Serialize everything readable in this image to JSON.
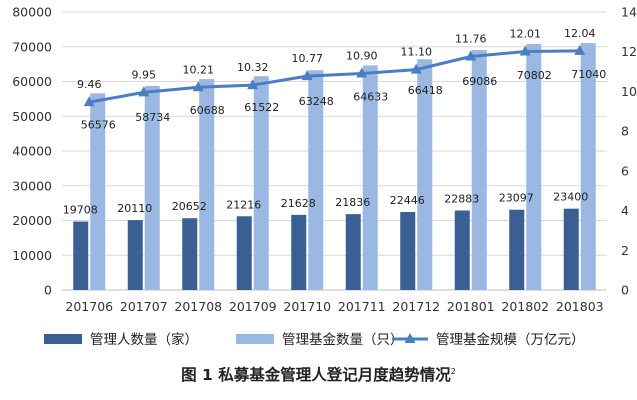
{
  "chart_data": {
    "type": "bar",
    "categories": [
      "201706",
      "201707",
      "201708",
      "201709",
      "201710",
      "201711",
      "201712",
      "201801",
      "201802",
      "201803"
    ],
    "series": [
      {
        "name": "管理人数量（家）",
        "type": "bar",
        "axis": "left",
        "color": "#3a5f93",
        "values": [
          19708,
          20110,
          20652,
          21216,
          21628,
          21836,
          22446,
          22883,
          23097,
          23400
        ]
      },
      {
        "name": "管理基金数量（只）",
        "type": "bar",
        "axis": "left",
        "color": "#9bb8e2",
        "values": [
          56576,
          58734,
          60688,
          61522,
          63248,
          64633,
          66418,
          69086,
          70802,
          71040
        ]
      },
      {
        "name": "管理基金规模（万亿元）",
        "type": "line",
        "axis": "right",
        "color": "#4a7ec2",
        "values": [
          9.46,
          9.95,
          10.21,
          10.32,
          10.77,
          10.9,
          11.1,
          11.76,
          12.01,
          12.04
        ]
      }
    ],
    "value_labels": {
      "series_0": [
        "19708",
        "20110",
        "20652",
        "21216",
        "21628",
        "21836",
        "22446",
        "22883",
        "23097",
        "23400"
      ],
      "series_1": [
        "56576",
        "58734",
        "60688",
        "61522",
        "63248",
        "64633",
        "66418",
        "69086",
        "70802",
        "71040"
      ],
      "series_2": [
        "9.46",
        "9.95",
        "10.21",
        "10.32",
        "10.77",
        "10.90",
        "11.10",
        "11.76",
        "12.01",
        "12.04"
      ]
    },
    "y_left_ticks": [
      "0",
      "10000",
      "20000",
      "30000",
      "40000",
      "50000",
      "60000",
      "70000",
      "80000"
    ],
    "y_right_ticks": [
      "0",
      "2",
      "4",
      "6",
      "8",
      "10",
      "12",
      "14"
    ],
    "ylim_left": [
      0,
      80000
    ],
    "ylim_right": [
      0,
      14
    ],
    "grid": true,
    "legend_position": "bottom",
    "title": "图 1  私募基金管理人登记月度趋势情况",
    "title_superscript": "2"
  }
}
